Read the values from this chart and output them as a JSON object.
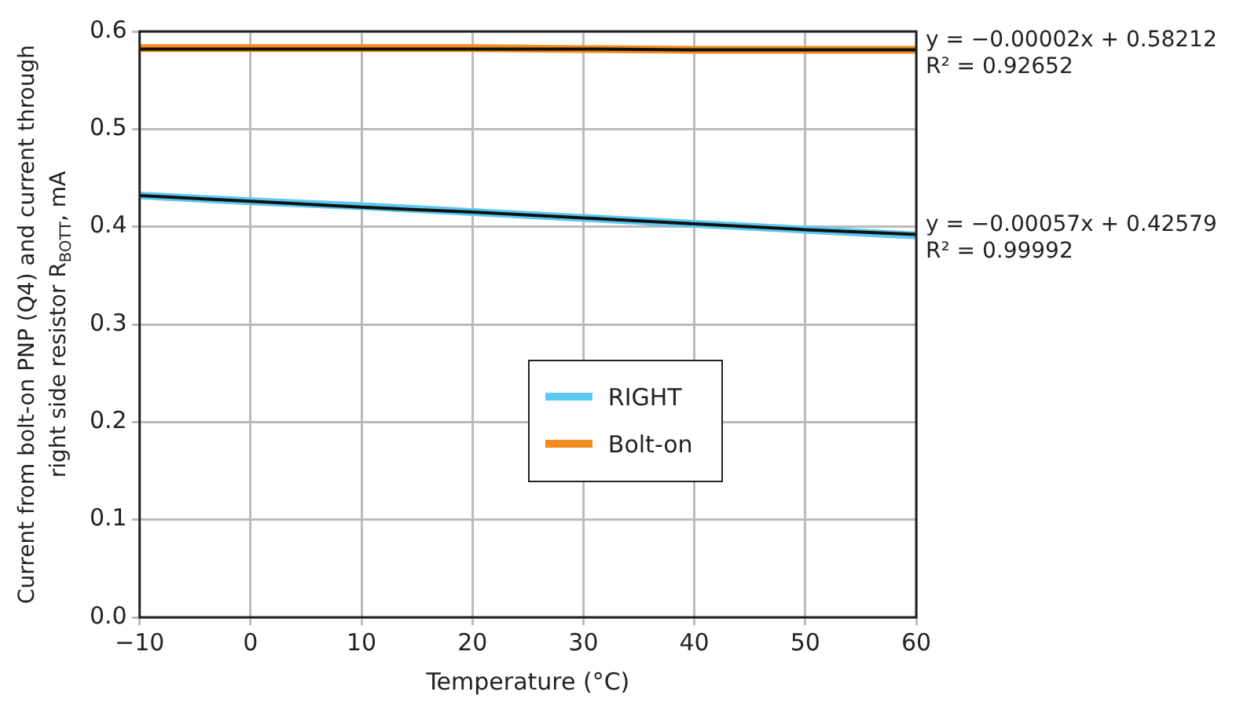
{
  "chart_data": {
    "type": "line",
    "xlabel": "Temperature (°C)",
    "ylabel": "Current from bolt-on PNP (Q4) and current through right side resistor R$_{BOTT}$, mA",
    "x": [
      -10,
      0,
      10,
      20,
      30,
      40,
      50,
      60
    ],
    "series": [
      {
        "name": "RIGHT",
        "color": "#5cc8f0",
        "values": [
          0.432,
          0.426,
          0.421,
          0.415,
          0.409,
          0.403,
          0.397,
          0.391
        ]
      },
      {
        "name": "Bolt-on",
        "color": "#f28c1e",
        "values": [
          0.583,
          0.583,
          0.583,
          0.583,
          0.582,
          0.581,
          0.581,
          0.581
        ]
      },
      {
        "type": "line",
        "color": "#111111",
        "values": [
          0.432,
          0.426,
          0.42,
          0.415,
          0.409,
          0.403,
          0.397,
          0.392
        ]
      },
      {
        "type": "line",
        "color": "#111111",
        "values": [
          0.582,
          0.582,
          0.582,
          0.582,
          0.582,
          0.581,
          0.581,
          0.581
        ]
      }
    ],
    "xlim": [
      -10,
      60
    ],
    "xticks": [
      {
        "value": -10,
        "label": "−10"
      },
      0,
      10,
      20,
      30,
      40,
      50,
      60
    ],
    "ylim": [
      0,
      0.6
    ],
    "yticks": [
      {
        "value": 0,
        "label": "0.0"
      },
      0.1,
      0.2,
      0.3,
      0.4,
      0.5,
      0.6
    ],
    "annotations": [
      {
        "text": "y = −0.00002x + 0.58212",
        "x": 60,
        "y": 0.581
      },
      "R² = 0.92652",
      {
        "text": "y = −0.00057x + 0.42579",
        "x": 60,
        "y": 0.392
      },
      "R² = 0.99992"
    ],
    "grid": true,
    "legend": "center",
    "marker": "none",
    "line_style": "solid"
  }
}
